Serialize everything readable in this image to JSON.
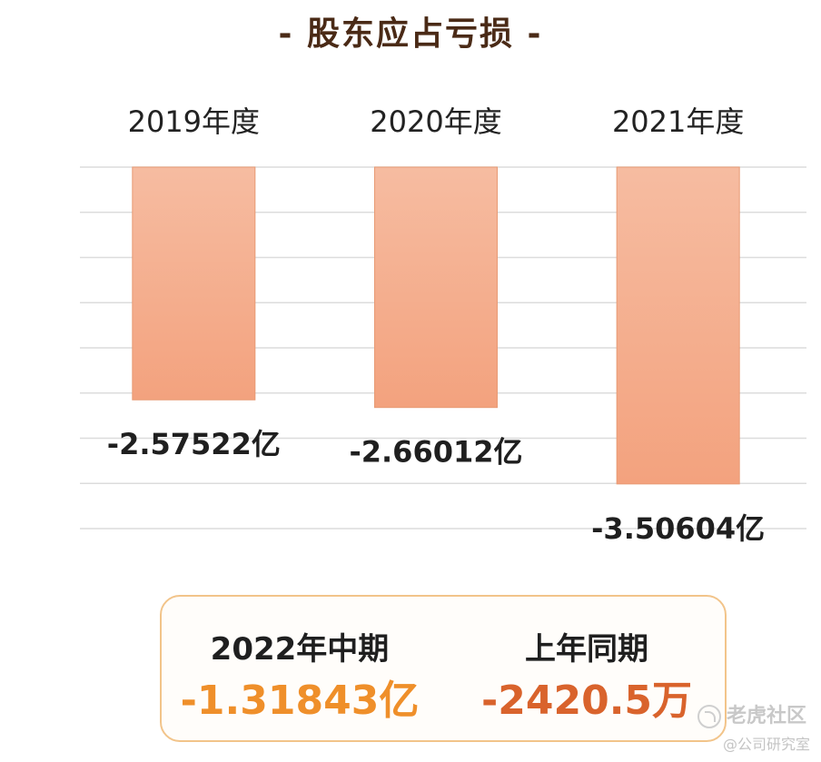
{
  "chart_data": {
    "type": "bar",
    "title": "- 股东应占亏损 -",
    "categories": [
      "2019年度",
      "2020年度",
      "2021年度"
    ],
    "values": [
      -2.57522,
      -2.66012,
      -3.50604
    ],
    "value_labels": [
      "-2.57522亿",
      "-2.66012亿",
      "-3.50604亿"
    ],
    "unit": "亿",
    "ylim": [
      -4,
      0
    ],
    "grid": true,
    "legend": "none",
    "bar_colors": [
      "#f6bca1",
      "#f3a27e"
    ]
  },
  "summary": {
    "current": {
      "label": "2022年中期",
      "value": "-1.31843亿"
    },
    "previous": {
      "label": "上年同期",
      "value": "-2420.5万"
    }
  },
  "colors": {
    "current_value": "#ef8f2a",
    "previous_value": "#d9632c",
    "box_border": "#f2c48a",
    "title": "#4a2a16",
    "grid": "#dcdcdc"
  },
  "watermarks": {
    "tiger": "老虎社区",
    "company": "@公司研究室"
  }
}
